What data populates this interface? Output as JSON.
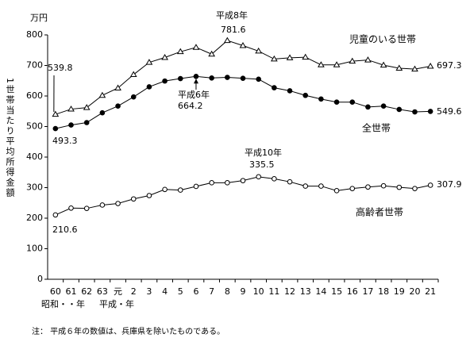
{
  "chart_data": {
    "type": "line",
    "y_unit": "万円",
    "ylabel": "1世帯当たり平均所得金額",
    "x_era_labels": [
      "昭和・・年",
      "平成・年"
    ],
    "categories": [
      "60",
      "61",
      "62",
      "63",
      "元",
      "2",
      "3",
      "4",
      "5",
      "6",
      "7",
      "8",
      "9",
      "10",
      "11",
      "12",
      "13",
      "14",
      "15",
      "16",
      "17",
      "18",
      "19",
      "20",
      "21"
    ],
    "ylim": [
      0,
      800
    ],
    "yticks": [
      0,
      100,
      200,
      300,
      400,
      500,
      600,
      700,
      800
    ],
    "grid": false,
    "series": [
      {
        "name": "児童のいる世帯",
        "color": "#000000",
        "marker": "triangle-open",
        "values": [
          539.8,
          557,
          562,
          602,
          626,
          670,
          710,
          726,
          745,
          759,
          737,
          781.6,
          765,
          747,
          721,
          725,
          727,
          702,
          702,
          714,
          718,
          701,
          691,
          688,
          697.3
        ]
      },
      {
        "name": "全世帯",
        "color": "#000000",
        "marker": "circle-filled",
        "values": [
          493.3,
          505,
          513,
          545,
          567,
          597,
          630,
          649,
          657,
          664.2,
          659,
          661,
          658,
          655,
          627,
          617,
          602,
          590,
          580,
          580,
          564,
          567,
          556,
          548,
          549.6
        ]
      },
      {
        "name": "高齢者世帯",
        "color": "#000000",
        "marker": "circle-open",
        "values": [
          210.6,
          233,
          232,
          243,
          248,
          263,
          274,
          294,
          292,
          304,
          316,
          316,
          323,
          335.5,
          329,
          319,
          305,
          305,
          290,
          297,
          302,
          306,
          301,
          297,
          307.9
        ]
      }
    ],
    "annotations": [
      "平成8年",
      "平成6年",
      "平成10年"
    ],
    "note": "注： 平成６年の数値は、兵庫県を除いたものである。"
  }
}
